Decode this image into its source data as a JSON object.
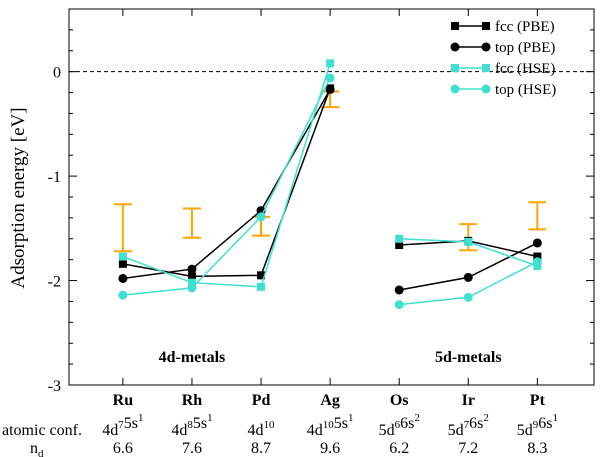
{
  "chart_data": {
    "type": "line",
    "ylabel": "Adsorption energy [eV]",
    "ylim": [
      -3,
      0.6
    ],
    "yticks": [
      0,
      -1,
      -2,
      -3
    ],
    "grid": false,
    "legend_position": "top-right",
    "categories": [
      "Ru",
      "Rh",
      "Pd",
      "Ag",
      "Os",
      "Ir",
      "Pt"
    ],
    "category_x": [
      1,
      2,
      3,
      4,
      5,
      6,
      7
    ],
    "xlim": [
      0.22,
      7.82
    ],
    "group_labels": [
      {
        "text": "4d-metals",
        "x": 2.0
      },
      {
        "text": "5d-metals",
        "x": 6.0
      }
    ],
    "annotation_rows": [
      {
        "label": "atomic conf.",
        "values": [
          [
            [
              "4d",
              "7"
            ],
            [
              "5s",
              "1"
            ]
          ],
          [
            [
              "4d",
              "8"
            ],
            [
              "5s",
              "1"
            ]
          ],
          [
            [
              "4d",
              "10"
            ]
          ],
          [
            [
              "4d",
              "10"
            ],
            [
              "5s",
              "1"
            ]
          ],
          [
            [
              "5d",
              "6"
            ],
            [
              "6s",
              "2"
            ]
          ],
          [
            [
              "5d",
              "7"
            ],
            [
              "6s",
              "2"
            ]
          ],
          [
            [
              "5d",
              "9"
            ],
            [
              "6s",
              "1"
            ]
          ]
        ]
      },
      {
        "label": "n",
        "label_sub": "d",
        "values": [
          "6.6",
          "7.6",
          "8.7",
          "9.6",
          "6.2",
          "7.2",
          "8.3"
        ]
      }
    ],
    "reference_line": {
      "y": 0,
      "style": "dashed"
    },
    "series": [
      {
        "name": "fcc (PBE)",
        "color": "#000000",
        "marker": "square",
        "segments": [
          {
            "x": [
              1,
              2,
              3,
              4
            ],
            "y": [
              -1.84,
              -1.96,
              -1.95,
              -0.16
            ]
          },
          {
            "x": [
              5,
              6,
              7
            ],
            "y": [
              -1.66,
              -1.62,
              -1.77
            ]
          }
        ]
      },
      {
        "name": "top (PBE)",
        "color": "#000000",
        "marker": "circle",
        "segments": [
          {
            "x": [
              1,
              2,
              3,
              4
            ],
            "y": [
              -1.98,
              -1.89,
              -1.33,
              -0.17
            ]
          },
          {
            "x": [
              5,
              6,
              7
            ],
            "y": [
              -2.09,
              -1.97,
              -1.64
            ]
          }
        ]
      },
      {
        "name": "fcc (HSE)",
        "color": "#40e0d0",
        "marker": "square",
        "segments": [
          {
            "x": [
              1,
              2,
              3,
              4
            ],
            "y": [
              -1.77,
              -2.02,
              -2.06,
              0.08
            ]
          },
          {
            "x": [
              5,
              6,
              7
            ],
            "y": [
              -1.6,
              -1.63,
              -1.86
            ]
          }
        ]
      },
      {
        "name": "top (HSE)",
        "color": "#40e0d0",
        "marker": "circle",
        "segments": [
          {
            "x": [
              1,
              2,
              3,
              4
            ],
            "y": [
              -2.14,
              -2.07,
              -1.39,
              -0.06
            ]
          },
          {
            "x": [
              5,
              6,
              7
            ],
            "y": [
              -2.23,
              -2.16,
              -1.82
            ]
          }
        ]
      }
    ],
    "error_bars": {
      "color": "#ffa500",
      "x": [
        1,
        2,
        3,
        4,
        6,
        7
      ],
      "low": [
        -1.72,
        -1.59,
        -1.57,
        -0.34,
        -1.71,
        -1.51
      ],
      "high": [
        -1.27,
        -1.31,
        -1.39,
        -0.19,
        -1.46,
        -1.25
      ]
    }
  }
}
